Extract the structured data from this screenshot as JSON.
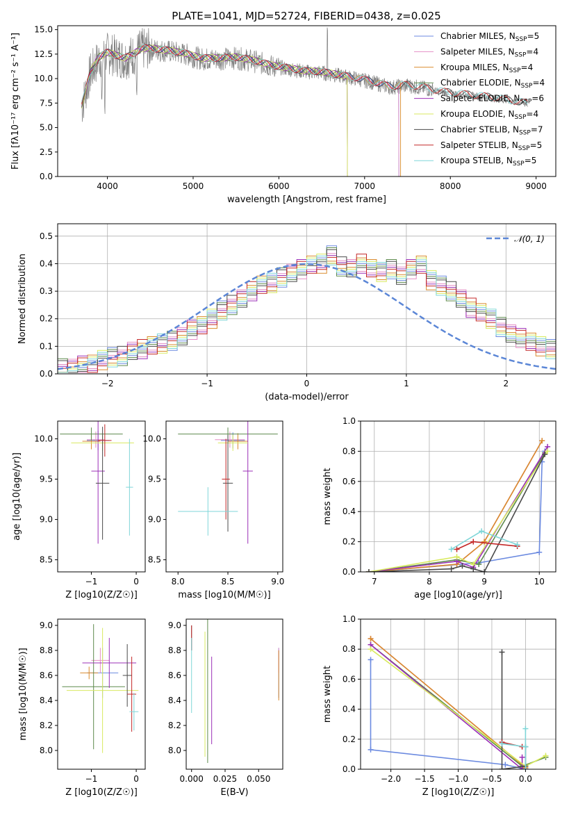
{
  "figure": {
    "title": "PLATE=1041, MJD=52724, FIBERID=0438, z=0.025"
  },
  "colors": {
    "Chabrier MILES": "#6b8ae0",
    "Salpeter MILES": "#e48ec4",
    "Kroupa MILES": "#d98a2c",
    "Chabrier ELODIE": "#5d8a4d",
    "Salpeter ELODIE": "#9b2fb7",
    "Kroupa ELODIE": "#d8ea5f",
    "Chabrier STELIB": "#4a4a4a",
    "Salpeter STELIB": "#c42828",
    "Kroupa STELIB": "#7fd6d8",
    "data": "#808080",
    "normal": "#5b86d6"
  },
  "chart_data": [
    {
      "id": "spectrum",
      "type": "line",
      "title": "PLATE=1041, MJD=52724, FIBERID=0438, z=0.025",
      "xlabel": "wavelength [Angstrom, rest frame]",
      "ylabel": "Flux [fλ10⁻¹⁷ erg cm⁻² s⁻¹ A⁻¹]",
      "xlim": [
        3420,
        9230
      ],
      "ylim": [
        0,
        15.4
      ],
      "xticks": [
        4000,
        5000,
        6000,
        7000,
        8000,
        9000
      ],
      "yticks": [
        0.0,
        2.5,
        5.0,
        7.5,
        10.0,
        12.5,
        15.0
      ],
      "legend_position": "top-right",
      "legend": [
        "Chabrier MILES, NSSP=5",
        "Salpeter MILES, NSSP=4",
        "Kroupa MILES, NSSP=4",
        "Chabrier ELODIE, NSSP=4",
        "Salpeter ELODIE, NSSP=6",
        "Kroupa ELODIE, NSSP=4",
        "Chabrier STELIB, NSSP=7",
        "Salpeter STELIB, NSSP=5",
        "Kroupa STELIB, NSSP=5"
      ],
      "data_curve": {
        "x": [
          3700,
          3800,
          3900,
          4000,
          4100,
          4200,
          4300,
          4400,
          4500,
          4700,
          4900,
          5100,
          5300,
          5500,
          5700,
          5900,
          6100,
          6300,
          6500,
          6700,
          6900,
          7100,
          7300,
          7500,
          7700,
          7900,
          8100,
          8300,
          8500,
          8700,
          8900
        ],
        "y": [
          7.0,
          10.5,
          12.0,
          12.6,
          12.3,
          12.0,
          12.4,
          13.0,
          13.0,
          12.8,
          12.5,
          12.0,
          12.0,
          12.1,
          11.8,
          11.3,
          11.0,
          10.7,
          10.6,
          10.3,
          10.0,
          9.6,
          9.1,
          9.3,
          9.0,
          8.6,
          8.4,
          8.2,
          8.0,
          7.7,
          7.4
        ]
      },
      "model_curve": {
        "x": [
          3700,
          3800,
          3900,
          4000,
          4100,
          4200,
          4300,
          4400,
          4500,
          4700,
          4900,
          5100,
          5300,
          5500,
          5700,
          5900,
          6100,
          6300,
          6500,
          6700,
          6900,
          7100,
          7300,
          7500,
          7700,
          7900,
          8100,
          8300,
          8500,
          8700,
          8900
        ],
        "y": [
          7.3,
          10.6,
          12.2,
          12.7,
          12.4,
          12.1,
          12.5,
          13.1,
          13.1,
          12.9,
          12.6,
          12.1,
          12.1,
          12.2,
          11.9,
          11.4,
          11.1,
          10.8,
          10.7,
          10.4,
          10.1,
          9.7,
          9.2,
          9.4,
          9.1,
          8.7,
          8.5,
          8.3,
          8.1,
          7.8,
          7.5
        ]
      },
      "model_ends": {
        "Chabrier MILES": 7400,
        "Salpeter MILES": 7400,
        "Kroupa MILES": 7420,
        "Chabrier ELODIE": 6800,
        "Salpeter ELODIE": 6800,
        "Kroupa ELODIE": 6800,
        "Chabrier STELIB": 8900,
        "Salpeter STELIB": 8900,
        "Kroupa STELIB": 8900
      }
    },
    {
      "id": "residuals",
      "type": "histogram",
      "xlabel": "(data-model)/error",
      "ylabel": "Normed distribution",
      "xlim": [
        -2.5,
        2.5
      ],
      "ylim": [
        0,
        0.545
      ],
      "xticks": [
        -2,
        -1,
        0,
        1,
        2
      ],
      "yticks": [
        0.0,
        0.1,
        0.2,
        0.3,
        0.4,
        0.5
      ],
      "grid": true,
      "legend_position": "top-right",
      "legend": [
        "𝒩(0, 1)"
      ],
      "bin_start": -2.5,
      "bin_width": 0.1,
      "values": [
        0.02,
        0.025,
        0.03,
        0.04,
        0.05,
        0.06,
        0.065,
        0.08,
        0.09,
        0.1,
        0.11,
        0.12,
        0.14,
        0.16,
        0.18,
        0.2,
        0.23,
        0.25,
        0.27,
        0.3,
        0.32,
        0.33,
        0.35,
        0.37,
        0.38,
        0.4,
        0.4,
        0.43,
        0.39,
        0.38,
        0.4,
        0.38,
        0.37,
        0.38,
        0.36,
        0.38,
        0.4,
        0.34,
        0.32,
        0.3,
        0.27,
        0.24,
        0.22,
        0.2,
        0.17,
        0.15,
        0.13,
        0.12,
        0.1,
        0.09,
        0.08,
        0.07,
        0.06,
        0.05,
        0.045,
        0.04,
        0.035,
        0.03,
        0.025,
        0.02
      ]
    },
    {
      "id": "age_vs_Z",
      "type": "errorbar",
      "xlabel": "Z [log10(Z/Z☉)]",
      "ylabel": "age [log10(age/yr)]",
      "xlim": [
        -1.75,
        0.2
      ],
      "ylim": [
        8.35,
        10.22
      ],
      "xticks": [
        -1,
        0
      ],
      "yticks": [
        8.5,
        9.0,
        9.5,
        10.0
      ],
      "points": [
        {
          "model": "Chabrier MILES",
          "x": -0.85,
          "y": 9.98,
          "xerr": 0.25,
          "yerr": 0.12
        },
        {
          "model": "Salpeter MILES",
          "x": -0.9,
          "y": 9.99,
          "xerr": 0.2,
          "yerr": 0.1
        },
        {
          "model": "Kroupa MILES",
          "x": -1.0,
          "y": 9.97,
          "xerr": 0.2,
          "yerr": 0.1
        },
        {
          "model": "Chabrier ELODIE",
          "x": -1.0,
          "y": 10.06,
          "xerr": 0.7,
          "yerr": 0.08
        },
        {
          "model": "Salpeter ELODIE",
          "x": -0.85,
          "y": 9.6,
          "xerr": 0.15,
          "yerr": 0.9
        },
        {
          "model": "Kroupa ELODIE",
          "x": -0.75,
          "y": 9.95,
          "xerr": 0.7,
          "yerr": 0.1
        },
        {
          "model": "Chabrier STELIB",
          "x": -0.75,
          "y": 9.45,
          "xerr": 0.15,
          "yerr": 0.7
        },
        {
          "model": "Salpeter STELIB",
          "x": -0.7,
          "y": 9.98,
          "xerr": 0.15,
          "yerr": 0.2
        },
        {
          "model": "Kroupa STELIB",
          "x": -0.15,
          "y": 9.4,
          "xerr": 0.08,
          "yerr": 0.6
        }
      ]
    },
    {
      "id": "age_vs_mass",
      "type": "errorbar",
      "xlabel": "mass [log10(M/M☉)]",
      "ylabel": "",
      "xlim": [
        7.88,
        9.05
      ],
      "ylim": [
        8.35,
        10.22
      ],
      "xticks": [
        8.0,
        8.5,
        9.0
      ],
      "yticks": [
        8.5,
        9.0,
        9.5,
        10.0
      ],
      "points": [
        {
          "model": "Chabrier MILES",
          "x": 8.55,
          "y": 9.98,
          "xerr": 0.12,
          "yerr": 0.1
        },
        {
          "model": "Salpeter MILES",
          "x": 8.52,
          "y": 9.99,
          "xerr": 0.15,
          "yerr": 0.1
        },
        {
          "model": "Kroupa MILES",
          "x": 8.6,
          "y": 9.97,
          "xerr": 0.1,
          "yerr": 0.1
        },
        {
          "model": "Chabrier ELODIE",
          "x": 8.5,
          "y": 10.06,
          "xerr": 0.5,
          "yerr": 0.08
        },
        {
          "model": "Salpeter ELODIE",
          "x": 8.7,
          "y": 9.6,
          "xerr": 0.05,
          "yerr": 0.9
        },
        {
          "model": "Kroupa ELODIE",
          "x": 8.55,
          "y": 9.95,
          "xerr": 0.15,
          "yerr": 0.1
        },
        {
          "model": "Chabrier STELIB",
          "x": 8.5,
          "y": 9.45,
          "xerr": 0.05,
          "yerr": 0.6
        },
        {
          "model": "Salpeter STELIB",
          "x": 8.48,
          "y": 9.5,
          "xerr": 0.04,
          "yerr": 0.5
        },
        {
          "model": "Kroupa STELIB",
          "x": 8.3,
          "y": 9.1,
          "xerr": 0.3,
          "yerr": 0.3
        }
      ]
    },
    {
      "id": "weight_vs_age",
      "type": "line",
      "xlabel": "age [log10(age/yr)]",
      "ylabel": "mass weight",
      "xlim": [
        6.75,
        10.3
      ],
      "ylim": [
        0,
        1.0
      ],
      "xticks": [
        7,
        8,
        9,
        10
      ],
      "yticks": [
        0.0,
        0.2,
        0.4,
        0.6,
        0.8,
        1.0
      ],
      "grid": true,
      "series": [
        {
          "model": "Chabrier MILES",
          "x": [
            6.9,
            8.9,
            10.0,
            10.05,
            10.1
          ],
          "y": [
            0.0,
            0.06,
            0.13,
            0.73,
            0.8
          ]
        },
        {
          "model": "Salpeter MILES",
          "x": [
            6.9,
            8.5,
            9.0,
            10.05
          ],
          "y": [
            0.0,
            0.05,
            0.2,
            0.87
          ]
        },
        {
          "model": "Kroupa MILES",
          "x": [
            6.9,
            8.5,
            9.0,
            10.05
          ],
          "y": [
            0.0,
            0.05,
            0.2,
            0.87
          ]
        },
        {
          "model": "Chabrier ELODIE",
          "x": [
            6.9,
            8.5,
            8.9,
            10.1
          ],
          "y": [
            0.0,
            0.08,
            0.05,
            0.79
          ]
        },
        {
          "model": "Salpeter ELODIE",
          "x": [
            6.9,
            8.5,
            8.8,
            10.15
          ],
          "y": [
            0.0,
            0.07,
            0.03,
            0.83
          ]
        },
        {
          "model": "Kroupa ELODIE",
          "x": [
            6.9,
            8.5,
            8.8,
            10.15
          ],
          "y": [
            0.0,
            0.1,
            0.05,
            0.8
          ]
        },
        {
          "model": "Chabrier STELIB",
          "x": [
            6.9,
            8.4,
            8.6,
            8.8,
            9.0,
            10.1
          ],
          "y": [
            0.0,
            0.02,
            0.04,
            0.02,
            0.0,
            0.78
          ]
        },
        {
          "model": "Salpeter STELIB",
          "x": [
            8.5,
            8.8,
            9.6
          ],
          "y": [
            0.15,
            0.2,
            0.17
          ]
        },
        {
          "model": "Kroupa STELIB",
          "x": [
            8.4,
            8.95,
            9.6
          ],
          "y": [
            0.15,
            0.27,
            0.18
          ]
        }
      ]
    },
    {
      "id": "mass_vs_Z",
      "type": "errorbar",
      "xlabel": "Z [log10(Z/Z☉)]",
      "ylabel": "mass [log10(M/M☉)]",
      "xlim": [
        -1.75,
        0.2
      ],
      "ylim": [
        7.85,
        9.05
      ],
      "xticks": [
        -1,
        0
      ],
      "yticks": [
        8.0,
        8.2,
        8.4,
        8.6,
        8.8,
        9.0
      ],
      "points": [
        {
          "model": "Chabrier MILES",
          "x": -0.75,
          "y": 8.62,
          "xerr": 0.35,
          "yerr": 0.2
        },
        {
          "model": "Salpeter MILES",
          "x": -0.8,
          "y": 8.72,
          "xerr": 0.2,
          "yerr": 0.1
        },
        {
          "model": "Kroupa MILES",
          "x": -1.05,
          "y": 8.62,
          "xerr": 0.2,
          "yerr": 0.05
        },
        {
          "model": "Chabrier ELODIE",
          "x": -0.95,
          "y": 8.51,
          "xerr": 0.7,
          "yerr": 0.5
        },
        {
          "model": "Salpeter ELODIE",
          "x": -0.6,
          "y": 8.7,
          "xerr": 0.6,
          "yerr": 0.2
        },
        {
          "model": "Kroupa ELODIE",
          "x": -0.75,
          "y": 8.48,
          "xerr": 0.8,
          "yerr": 0.5
        },
        {
          "model": "Chabrier STELIB",
          "x": -0.2,
          "y": 8.6,
          "xerr": 0.1,
          "yerr": 0.25
        },
        {
          "model": "Salpeter STELIB",
          "x": -0.1,
          "y": 8.45,
          "xerr": 0.1,
          "yerr": 0.3
        },
        {
          "model": "Kroupa STELIB",
          "x": -0.05,
          "y": 8.31,
          "xerr": 0.1,
          "yerr": 0.15
        }
      ]
    },
    {
      "id": "mass_vs_ebv",
      "type": "errorbar",
      "xlabel": "E(B-V)",
      "ylabel": "",
      "xlim": [
        -0.004,
        0.068
      ],
      "ylim": [
        7.85,
        9.05
      ],
      "xticks": [
        0.0,
        0.025,
        0.05
      ],
      "yticks": [
        8.0,
        8.2,
        8.4,
        8.6,
        8.8,
        9.0
      ],
      "points": [
        {
          "model": "Chabrier MILES",
          "x": 0.065,
          "y": 8.62,
          "xerr": 0,
          "yerr": 0.2
        },
        {
          "model": "Salpeter MILES",
          "x": 0.065,
          "y": 8.72,
          "xerr": 0,
          "yerr": 0.1
        },
        {
          "model": "Kroupa MILES",
          "x": 0.065,
          "y": 8.6,
          "xerr": 0,
          "yerr": 0.2
        },
        {
          "model": "Chabrier ELODIE",
          "x": 0.012,
          "y": 8.5,
          "xerr": 0,
          "yerr": 0.6
        },
        {
          "model": "Salpeter ELODIE",
          "x": 0.015,
          "y": 8.4,
          "xerr": 0,
          "yerr": 0.35
        },
        {
          "model": "Kroupa ELODIE",
          "x": 0.01,
          "y": 8.45,
          "xerr": 0,
          "yerr": 0.5
        },
        {
          "model": "Chabrier STELIB",
          "x": 0.0,
          "y": 8.9,
          "xerr": 0,
          "yerr": 0.1
        },
        {
          "model": "Salpeter STELIB",
          "x": 0.0,
          "y": 8.9,
          "xerr": 0,
          "yerr": 0.1
        },
        {
          "model": "Kroupa STELIB",
          "x": 0.0,
          "y": 8.6,
          "xerr": 0,
          "yerr": 0.3
        }
      ]
    },
    {
      "id": "weight_vs_Z",
      "type": "line",
      "xlabel": "Z [log10(Z/Z☉)]",
      "ylabel": "mass weight",
      "xlim": [
        -2.45,
        0.45
      ],
      "ylim": [
        0,
        1.0
      ],
      "xticks": [
        -2.0,
        -1.5,
        -1.0,
        -0.5,
        0.0
      ],
      "yticks": [
        0.0,
        0.2,
        0.4,
        0.6,
        0.8,
        1.0
      ],
      "grid": true,
      "series": [
        {
          "model": "Chabrier MILES",
          "x": [
            -2.3,
            -2.3,
            -0.3,
            0.0,
            0.0
          ],
          "y": [
            0.73,
            0.13,
            0.03,
            0.0,
            0.0
          ]
        },
        {
          "model": "Salpeter MILES",
          "x": [
            -2.3,
            0.0
          ],
          "y": [
            0.87,
            0.01
          ]
        },
        {
          "model": "Kroupa MILES",
          "x": [
            -2.3,
            0.0
          ],
          "y": [
            0.87,
            0.01
          ]
        },
        {
          "model": "Chabrier ELODIE",
          "x": [
            -2.3,
            -0.05,
            0.3
          ],
          "y": [
            0.83,
            0.02,
            0.08
          ]
        },
        {
          "model": "Salpeter ELODIE",
          "x": [
            -2.3,
            -0.05,
            -0.05
          ],
          "y": [
            0.83,
            0.0,
            0.08
          ]
        },
        {
          "model": "Kroupa ELODIE",
          "x": [
            -2.3,
            0.0,
            0.3
          ],
          "y": [
            0.8,
            0.02,
            0.09
          ]
        },
        {
          "model": "Chabrier STELIB",
          "x": [
            -0.35,
            -0.35,
            0.0,
            0.0
          ],
          "y": [
            0.78,
            0.0,
            0.02,
            0.15
          ]
        },
        {
          "model": "Salpeter STELIB",
          "x": [
            -0.35,
            -0.05
          ],
          "y": [
            0.18,
            0.15
          ]
        },
        {
          "model": "Kroupa STELIB",
          "x": [
            -0.35,
            0.0,
            0.0,
            0.0
          ],
          "y": [
            0.17,
            0.15,
            0.27,
            0.0
          ]
        }
      ]
    }
  ]
}
